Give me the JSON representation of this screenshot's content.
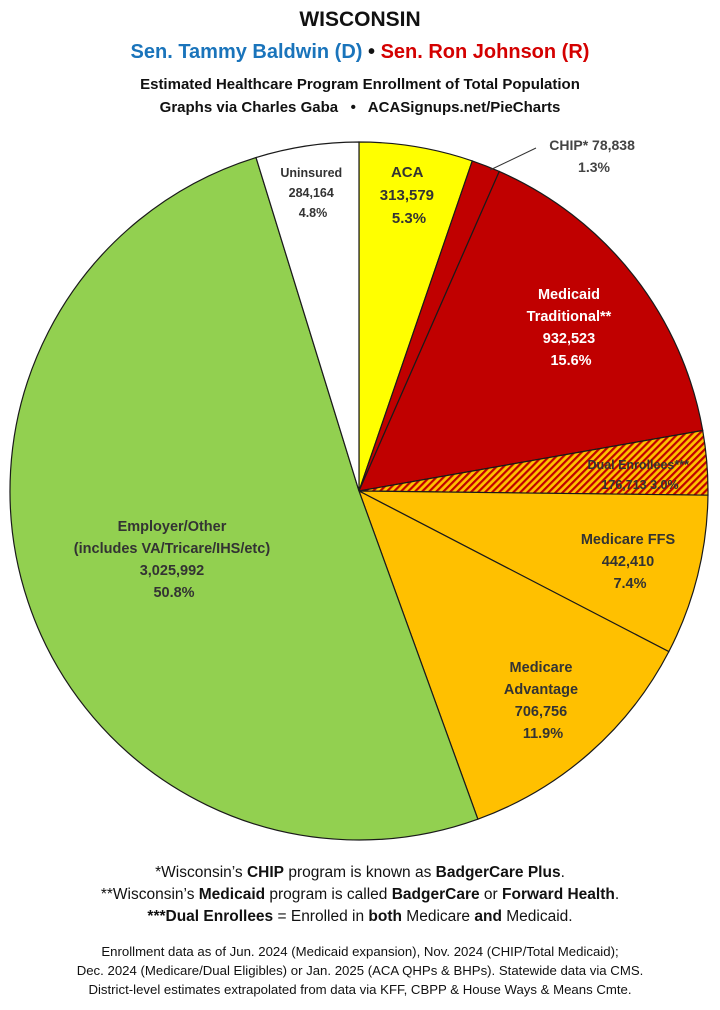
{
  "header": {
    "state": "WISCONSIN",
    "sen_dem": "Sen. Tammy Baldwin (D)",
    "bullet": "•",
    "sen_rep": "Sen. Ron Johnson (R)",
    "subtitle": "Estimated Healthcare Program Enrollment of Total Population",
    "credit": "Graphs via Charles Gaba   •   ACASignups.net/PieCharts"
  },
  "colors": {
    "democrat": "#1a74bb",
    "republican": "#d40000"
  },
  "chart_data": {
    "type": "pie",
    "start_angle_deg": 0,
    "direction": "clockwise",
    "slices": [
      {
        "label": "ACA",
        "value": 313579,
        "value_text": "313,579",
        "percent_text": "5.3%",
        "color": "#ffff00",
        "text_color": "#333333"
      },
      {
        "label": "CHIP*",
        "value": 78838,
        "value_text": "78,838",
        "percent_text": "1.3%",
        "color": "#c00000",
        "text_color": "#333333"
      },
      {
        "label": "Medicaid Traditional**",
        "value": 932523,
        "value_text": "932,523",
        "percent_text": "15.6%",
        "color": "#c00000",
        "text_color": "#ffffff"
      },
      {
        "label": "Dual Enrollees***",
        "value": 176713,
        "value_text": "176,713",
        "percent_text": "3.0%",
        "color": "#ffc000",
        "pattern": "hatched-red",
        "text_color": "#333333"
      },
      {
        "label": "Medicare FFS",
        "value": 442410,
        "value_text": "442,410",
        "percent_text": "7.4%",
        "color": "#ffc000",
        "text_color": "#333333"
      },
      {
        "label": "Medicare Advantage",
        "value": 706756,
        "value_text": "706,756",
        "percent_text": "11.9%",
        "color": "#ffc000",
        "text_color": "#333333"
      },
      {
        "label": "Employer/Other (includes VA/Tricare/IHS/etc)",
        "value": 3025992,
        "value_text": "3,025,992",
        "percent_text": "50.8%",
        "color": "#92d050",
        "text_color": "#333333"
      },
      {
        "label": "Uninsured",
        "value": 284164,
        "value_text": "284,164",
        "percent_text": "4.8%",
        "color": "#ffffff",
        "text_color": "#333333"
      }
    ]
  },
  "pie_labels": {
    "aca": {
      "line1": "ACA",
      "line2": "313,579",
      "line3": "5.3%"
    },
    "chip": {
      "line1": "CHIP* 78,838",
      "line2": "1.3%"
    },
    "medicaid": {
      "line1": "Medicaid",
      "line2": "Traditional**",
      "line3": "932,523",
      "line4": "15.6%"
    },
    "dual": {
      "line1": "Dual Enrollees***",
      "line2": "176,713 3.0%"
    },
    "ffs": {
      "line1": "Medicare FFS",
      "line2": "442,410",
      "line3": "7.4%"
    },
    "ma": {
      "line1": "Medicare",
      "line2": "Advantage",
      "line3": "706,756",
      "line4": "11.9%"
    },
    "employer": {
      "line1": "Employer/Other",
      "line2": "(includes VA/Tricare/IHS/etc)",
      "line3": "3,025,992",
      "line4": "50.8%"
    },
    "uninsured": {
      "line1": "Uninsured",
      "line2": "284,164",
      "line3": "4.8%"
    }
  },
  "notes": {
    "chip": {
      "a": "*Wisconsin’s ",
      "b": "CHIP",
      "c": " program is known as ",
      "d": "BadgerCare Plus",
      "e": "."
    },
    "medicaid": {
      "a": "**Wisconsin’s ",
      "b": "Medicaid",
      "c": " program is called ",
      "d": "BadgerCare",
      "e": " or ",
      "f": "Forward Health",
      "g": "."
    },
    "dual": {
      "a": "***Dual Enrollees",
      "b": " = Enrolled in ",
      "c": "both",
      "d": " Medicare ",
      "e": "and",
      "f": " Medicaid."
    }
  },
  "footer": {
    "line1": "Enrollment data as of Jun. 2024 (Medicaid expansion), Nov. 2024 (CHIP/Total Medicaid);",
    "line2": "Dec. 2024 (Medicare/Dual Eligibles) or Jan. 2025 (ACA QHPs & BHPs). Statewide data via CMS.",
    "line3": "District-level estimates extrapolated from data via KFF, CBPP & House Ways & Means Cmte."
  }
}
